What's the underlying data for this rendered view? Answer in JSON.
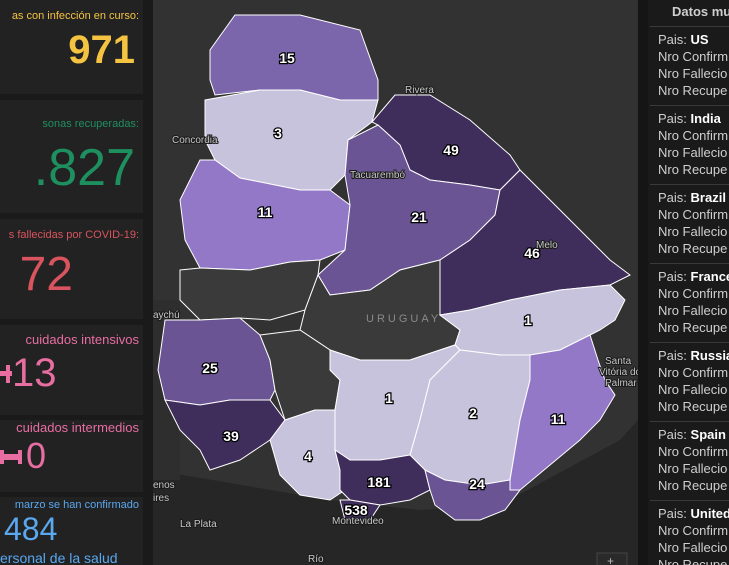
{
  "colors": {
    "active": "#f5c342",
    "recovered": "#1e8f5e",
    "deaths": "#d9545e",
    "intensive": "#e86ea2",
    "intermediate": "#e86ea2",
    "health": "#5aa8f0"
  },
  "cards": {
    "active": {
      "label": "as con infección en curso:",
      "value": "971"
    },
    "recovered": {
      "label": "sonas recuperadas:",
      "value": ".827"
    },
    "deaths": {
      "label": "s fallecidas por COVID-19:",
      "value": "72"
    },
    "intensive": {
      "label": "cuidados intensivos",
      "value": "13",
      "icon": "hospital-bed-icon"
    },
    "intermediate": {
      "label": "cuidados intermedios",
      "value": "0",
      "icon": "hospital-bed-icon"
    },
    "health": {
      "label": "marzo se han confirmado",
      "value": "484",
      "sub": "ersonal de la salud"
    }
  },
  "map": {
    "departments": [
      {
        "id": "artigas",
        "count": "15",
        "fill": "#7b66ac"
      },
      {
        "id": "salto",
        "count": "3",
        "fill": "#c8c3dd"
      },
      {
        "id": "rivera",
        "count": "49",
        "fill": "#3f2d5c"
      },
      {
        "id": "paysandu",
        "count": "11",
        "fill": "#9378c8"
      },
      {
        "id": "tacuarembo",
        "count": "21",
        "fill": "#6b5494"
      },
      {
        "id": "cerro-largo",
        "count": "46",
        "fill": "#3f2d5c"
      },
      {
        "id": "rio-negro",
        "count": "",
        "fill": "#3a3a3a"
      },
      {
        "id": "durazno",
        "count": "",
        "fill": "#3a3a3a"
      },
      {
        "id": "treinta-y-tres",
        "count": "1",
        "fill": "#c8c3dd"
      },
      {
        "id": "soriano",
        "count": "25",
        "fill": "#6b5494"
      },
      {
        "id": "flores",
        "count": "",
        "fill": "#3a3a3a"
      },
      {
        "id": "florida",
        "count": "1",
        "fill": "#c8c3dd"
      },
      {
        "id": "lavalleja",
        "count": "2",
        "fill": "#c8c3dd"
      },
      {
        "id": "rocha",
        "count": "11",
        "fill": "#9378c8"
      },
      {
        "id": "colonia",
        "count": "39",
        "fill": "#3f2d5c"
      },
      {
        "id": "san-jose",
        "count": "4",
        "fill": "#c8c3dd"
      },
      {
        "id": "canelones",
        "count": "181",
        "fill": "#3f2d5c"
      },
      {
        "id": "maldonado",
        "count": "24",
        "fill": "#6b5494"
      },
      {
        "id": "montevideo",
        "count": "538",
        "fill": "#3f2d5c"
      }
    ],
    "places": {
      "rivera": "Rivera",
      "concordia": "Concordia",
      "tacuarembo": "Tacuarembó",
      "melo": "Melo",
      "uruguay": "URUGUAY",
      "paysandu_partial": "aychú",
      "santa_vitoria_1": "Santa",
      "santa_vitoria_2": "Vitória do",
      "santa_vitoria_3": "Palmar",
      "baires_1": "enos",
      "baires_2": "ires",
      "la_plata": "La Plata",
      "montevideo": "Montevideo",
      "rio": "Río"
    }
  },
  "right_panel": {
    "header": "Datos mu",
    "countries": [
      {
        "name": "US"
      },
      {
        "name": "India"
      },
      {
        "name": "Brazil"
      },
      {
        "name": "France"
      },
      {
        "name": "Russia"
      },
      {
        "name": "Spain"
      },
      {
        "name": "United"
      }
    ],
    "labels": {
      "pais": "Pais:",
      "confirmed": "Nro Confirm",
      "deaths": "Nro Fallecio",
      "recovered": "Nro Recupe"
    }
  }
}
